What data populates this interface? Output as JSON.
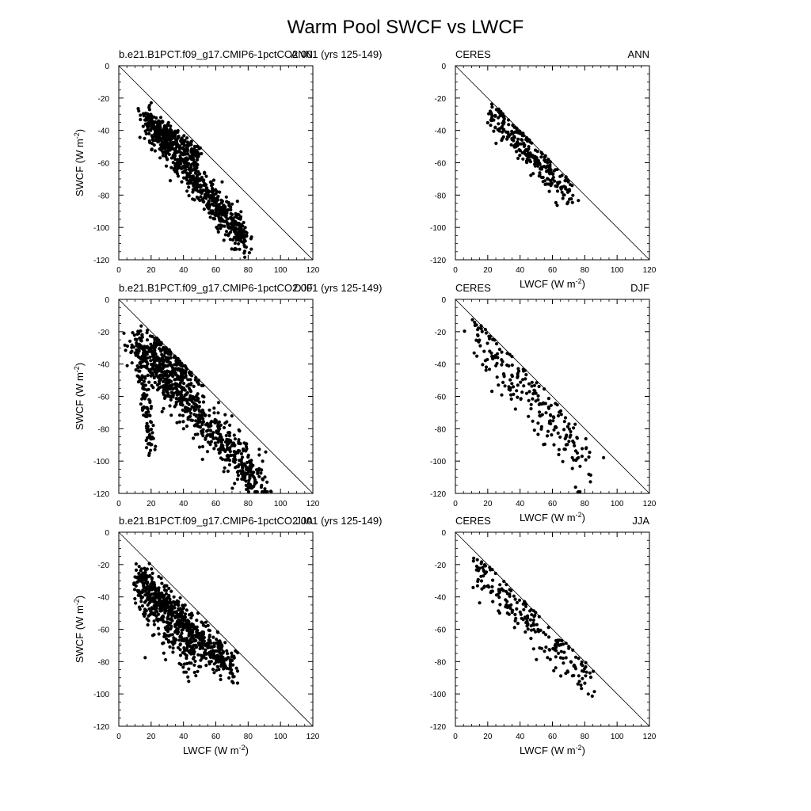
{
  "figure": {
    "title": "Warm Pool SWCF vs LWCF"
  },
  "common": {
    "xlabel": "LWCF (W m",
    "ylabel": "SWCF (W m",
    "unit_exp": "-2"
  },
  "chart_data": [
    {
      "type": "scatter",
      "left_label": "b.e21.B1PCT.f09_g17.CMIP6-1pctCO2.001 (yrs 125-149)",
      "right_label": "ANN",
      "xlim": [
        0,
        120
      ],
      "ylim": [
        -120,
        0
      ],
      "xticks": [
        "0",
        "20",
        "40",
        "60",
        "80",
        "100",
        "120"
      ],
      "yticks": [
        "0",
        "-20",
        "-40",
        "-60",
        "-80",
        "-100",
        "-120"
      ],
      "reference_line": "y = -x",
      "show_xlabel": false,
      "show_ylabel": true,
      "clusters": [
        {
          "cx": [
            16,
            78
          ],
          "cy": [
            -32,
            -108
          ],
          "n": 700,
          "width": 5
        },
        {
          "cx": [
            20,
            50
          ],
          "cy": [
            -36,
            -55
          ],
          "n": 200,
          "width": 3
        }
      ]
    },
    {
      "type": "scatter",
      "left_label": "CERES",
      "right_label": "ANN",
      "xlim": [
        0,
        120
      ],
      "ylim": [
        -120,
        0
      ],
      "xticks": [
        "0",
        "20",
        "40",
        "60",
        "80",
        "100",
        "120"
      ],
      "yticks": [
        "0",
        "-20",
        "-40",
        "-60",
        "-80",
        "-100",
        "-120"
      ],
      "reference_line": "y = -x",
      "show_xlabel": true,
      "show_ylabel": false,
      "clusters": [
        {
          "cx": [
            22,
            72
          ],
          "cy": [
            -28,
            -82
          ],
          "n": 260,
          "width": 5
        }
      ]
    },
    {
      "type": "scatter",
      "left_label": "b.e21.B1PCT.f09_g17.CMIP6-1pctCO2.001 (yrs 125-149)",
      "right_label": "DJF",
      "xlim": [
        0,
        120
      ],
      "ylim": [
        -120,
        0
      ],
      "xticks": [
        "0",
        "20",
        "40",
        "60",
        "80",
        "100",
        "120"
      ],
      "yticks": [
        "0",
        "-20",
        "-40",
        "-60",
        "-80",
        "-100",
        "-120"
      ],
      "reference_line": "y = -x",
      "show_xlabel": false,
      "show_ylabel": true,
      "clusters": [
        {
          "cx": [
            10,
            88
          ],
          "cy": [
            -26,
            -115
          ],
          "n": 650,
          "width": 7
        },
        {
          "cx": [
            12,
            20
          ],
          "cy": [
            -30,
            -92
          ],
          "n": 120,
          "width": 3
        },
        {
          "cx": [
            20,
            45
          ],
          "cy": [
            -30,
            -55
          ],
          "n": 220,
          "width": 10
        }
      ]
    },
    {
      "type": "scatter",
      "left_label": "CERES",
      "right_label": "DJF",
      "xlim": [
        0,
        120
      ],
      "ylim": [
        -120,
        0
      ],
      "xticks": [
        "0",
        "20",
        "40",
        "60",
        "80",
        "100",
        "120"
      ],
      "yticks": [
        "0",
        "-20",
        "-40",
        "-60",
        "-80",
        "-100",
        "-120"
      ],
      "reference_line": "y = -x",
      "show_xlabel": true,
      "show_ylabel": false,
      "clusters": [
        {
          "cx": [
            11,
            84
          ],
          "cy": [
            -18,
            -105
          ],
          "n": 220,
          "width": 8
        }
      ]
    },
    {
      "type": "scatter",
      "left_label": "b.e21.B1PCT.f09_g17.CMIP6-1pctCO2.001 (yrs 125-149)",
      "right_label": "JJA",
      "xlim": [
        0,
        120
      ],
      "ylim": [
        -120,
        0
      ],
      "xticks": [
        "0",
        "20",
        "40",
        "60",
        "80",
        "100",
        "120"
      ],
      "yticks": [
        "0",
        "-20",
        "-40",
        "-60",
        "-80",
        "-100",
        "-120"
      ],
      "reference_line": "y = -x",
      "show_xlabel": true,
      "show_ylabel": true,
      "clusters": [
        {
          "cx": [
            12,
            70
          ],
          "cy": [
            -28,
            -84
          ],
          "n": 600,
          "width": 5
        },
        {
          "cx": [
            15,
            50
          ],
          "cy": [
            -40,
            -82
          ],
          "n": 200,
          "width": 7
        }
      ]
    },
    {
      "type": "scatter",
      "left_label": "CERES",
      "right_label": "JJA",
      "xlim": [
        0,
        120
      ],
      "ylim": [
        -120,
        0
      ],
      "xticks": [
        "0",
        "20",
        "40",
        "60",
        "80",
        "100",
        "120"
      ],
      "yticks": [
        "0",
        "-20",
        "-40",
        "-60",
        "-80",
        "-100",
        "-120"
      ],
      "reference_line": "y = -x",
      "show_xlabel": true,
      "show_ylabel": false,
      "clusters": [
        {
          "cx": [
            11,
            82
          ],
          "cy": [
            -20,
            -92
          ],
          "n": 220,
          "width": 6
        }
      ]
    }
  ]
}
